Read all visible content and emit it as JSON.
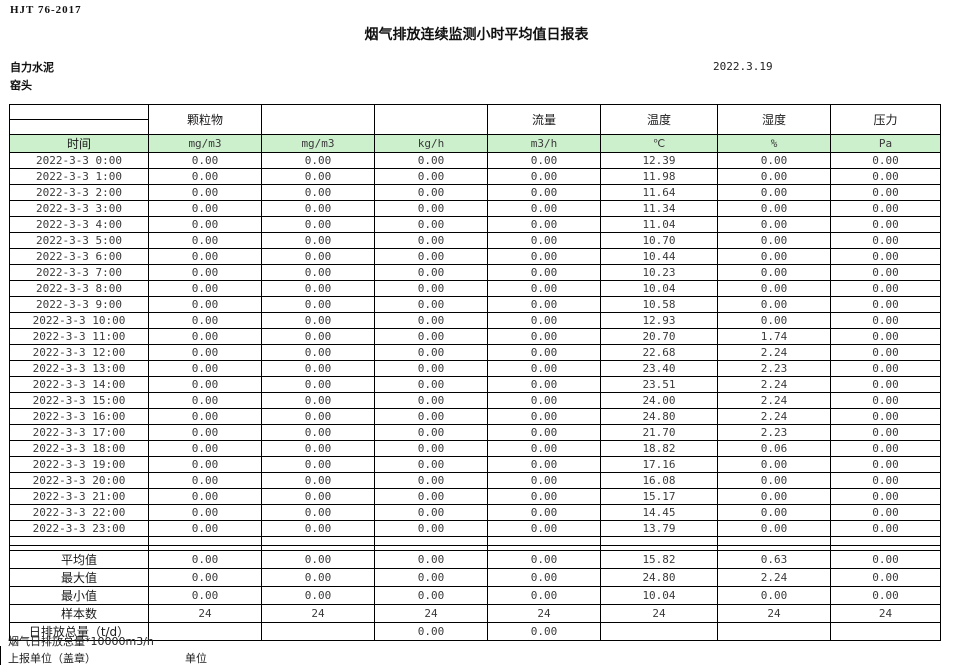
{
  "header": {
    "standard_no": "HJT  76-2017",
    "title": "烟气排放连续监测小时平均值日报表",
    "company": "自力水泥",
    "station": "窑头",
    "date": "2022.3.19"
  },
  "colors": {
    "header_green": "#ccf0cc",
    "border": "#000000"
  },
  "table": {
    "pollutant_headers": [
      "",
      "颗粒物",
      "",
      "",
      "流量",
      "温度",
      "湿度",
      "压力"
    ],
    "unit_row": [
      "时间",
      "mg/m3",
      "mg/m3",
      "kg/h",
      "m3/h",
      "℃",
      "%",
      "Pa"
    ],
    "rows": [
      {
        "time": "2022-3-3 0:00",
        "values": [
          "0.00",
          "0.00",
          "0.00",
          "0.00",
          "12.39",
          "0.00",
          "0.00"
        ]
      },
      {
        "time": "2022-3-3 1:00",
        "values": [
          "0.00",
          "0.00",
          "0.00",
          "0.00",
          "11.98",
          "0.00",
          "0.00"
        ]
      },
      {
        "time": "2022-3-3 2:00",
        "values": [
          "0.00",
          "0.00",
          "0.00",
          "0.00",
          "11.64",
          "0.00",
          "0.00"
        ]
      },
      {
        "time": "2022-3-3 3:00",
        "values": [
          "0.00",
          "0.00",
          "0.00",
          "0.00",
          "11.34",
          "0.00",
          "0.00"
        ]
      },
      {
        "time": "2022-3-3 4:00",
        "values": [
          "0.00",
          "0.00",
          "0.00",
          "0.00",
          "11.04",
          "0.00",
          "0.00"
        ]
      },
      {
        "time": "2022-3-3 5:00",
        "values": [
          "0.00",
          "0.00",
          "0.00",
          "0.00",
          "10.70",
          "0.00",
          "0.00"
        ]
      },
      {
        "time": "2022-3-3 6:00",
        "values": [
          "0.00",
          "0.00",
          "0.00",
          "0.00",
          "10.44",
          "0.00",
          "0.00"
        ]
      },
      {
        "time": "2022-3-3 7:00",
        "values": [
          "0.00",
          "0.00",
          "0.00",
          "0.00",
          "10.23",
          "0.00",
          "0.00"
        ]
      },
      {
        "time": "2022-3-3 8:00",
        "values": [
          "0.00",
          "0.00",
          "0.00",
          "0.00",
          "10.04",
          "0.00",
          "0.00"
        ]
      },
      {
        "time": "2022-3-3 9:00",
        "values": [
          "0.00",
          "0.00",
          "0.00",
          "0.00",
          "10.58",
          "0.00",
          "0.00"
        ]
      },
      {
        "time": "2022-3-3 10:00",
        "values": [
          "0.00",
          "0.00",
          "0.00",
          "0.00",
          "12.93",
          "0.00",
          "0.00"
        ]
      },
      {
        "time": "2022-3-3 11:00",
        "values": [
          "0.00",
          "0.00",
          "0.00",
          "0.00",
          "20.70",
          "1.74",
          "0.00"
        ]
      },
      {
        "time": "2022-3-3 12:00",
        "values": [
          "0.00",
          "0.00",
          "0.00",
          "0.00",
          "22.68",
          "2.24",
          "0.00"
        ]
      },
      {
        "time": "2022-3-3 13:00",
        "values": [
          "0.00",
          "0.00",
          "0.00",
          "0.00",
          "23.40",
          "2.23",
          "0.00"
        ]
      },
      {
        "time": "2022-3-3 14:00",
        "values": [
          "0.00",
          "0.00",
          "0.00",
          "0.00",
          "23.51",
          "2.24",
          "0.00"
        ]
      },
      {
        "time": "2022-3-3 15:00",
        "values": [
          "0.00",
          "0.00",
          "0.00",
          "0.00",
          "24.00",
          "2.24",
          "0.00"
        ]
      },
      {
        "time": "2022-3-3 16:00",
        "values": [
          "0.00",
          "0.00",
          "0.00",
          "0.00",
          "24.80",
          "2.24",
          "0.00"
        ]
      },
      {
        "time": "2022-3-3 17:00",
        "values": [
          "0.00",
          "0.00",
          "0.00",
          "0.00",
          "21.70",
          "2.23",
          "0.00"
        ]
      },
      {
        "time": "2022-3-3 18:00",
        "values": [
          "0.00",
          "0.00",
          "0.00",
          "0.00",
          "18.82",
          "0.06",
          "0.00"
        ]
      },
      {
        "time": "2022-3-3 19:00",
        "values": [
          "0.00",
          "0.00",
          "0.00",
          "0.00",
          "17.16",
          "0.00",
          "0.00"
        ]
      },
      {
        "time": "2022-3-3 20:00",
        "values": [
          "0.00",
          "0.00",
          "0.00",
          "0.00",
          "16.08",
          "0.00",
          "0.00"
        ]
      },
      {
        "time": "2022-3-3 21:00",
        "values": [
          "0.00",
          "0.00",
          "0.00",
          "0.00",
          "15.17",
          "0.00",
          "0.00"
        ]
      },
      {
        "time": "2022-3-3 22:00",
        "values": [
          "0.00",
          "0.00",
          "0.00",
          "0.00",
          "14.45",
          "0.00",
          "0.00"
        ]
      },
      {
        "time": "2022-3-3 23:00",
        "values": [
          "0.00",
          "0.00",
          "0.00",
          "0.00",
          "13.79",
          "0.00",
          "0.00"
        ]
      }
    ],
    "summary": [
      {
        "label": "平均值",
        "values": [
          "0.00",
          "0.00",
          "0.00",
          "0.00",
          "15.82",
          "0.63",
          "0.00"
        ]
      },
      {
        "label": "最大值",
        "values": [
          "0.00",
          "0.00",
          "0.00",
          "0.00",
          "24.80",
          "2.24",
          "0.00"
        ]
      },
      {
        "label": "最小值",
        "values": [
          "0.00",
          "0.00",
          "0.00",
          "0.00",
          "10.04",
          "0.00",
          "0.00"
        ]
      },
      {
        "label": "样本数",
        "values": [
          "24",
          "24",
          "24",
          "24",
          "24",
          "24",
          "24"
        ]
      },
      {
        "label": "日排放总量（t/d）",
        "values": [
          "",
          "",
          "0.00",
          "0.00",
          "",
          "",
          ""
        ]
      }
    ]
  },
  "footer": {
    "note": "烟气日排放总量*10000m3/h",
    "report_unit_label": "上报单位（盖章）",
    "unit_label": "单位"
  }
}
